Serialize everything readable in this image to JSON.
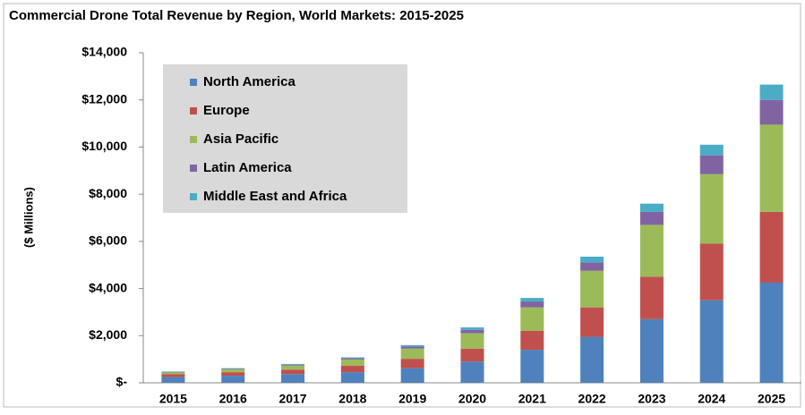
{
  "chart_data": {
    "type": "stacked_bar",
    "title": "Commercial Drone Total Revenue by Region, World Markets: 2015-2025",
    "y_label": "($ Millions)",
    "categories": [
      "2015",
      "2016",
      "2017",
      "2018",
      "2019",
      "2020",
      "2021",
      "2022",
      "2023",
      "2024",
      "2025"
    ],
    "series": [
      {
        "name": "North America",
        "color": "#4f81bd",
        "values": [
          250,
          300,
          370,
          450,
          620,
          900,
          1400,
          1950,
          2700,
          3500,
          4250
        ]
      },
      {
        "name": "Europe",
        "color": "#c0504d",
        "values": [
          110,
          150,
          190,
          270,
          400,
          550,
          800,
          1250,
          1800,
          2400,
          3000
        ]
      },
      {
        "name": "Asia Pacific",
        "color": "#9bbb59",
        "values": [
          80,
          120,
          170,
          270,
          430,
          650,
          1000,
          1550,
          2200,
          2950,
          3700
        ]
      },
      {
        "name": "Latin America",
        "color": "#8064a2",
        "values": [
          20,
          30,
          40,
          50,
          90,
          150,
          250,
          350,
          550,
          800,
          1050
        ]
      },
      {
        "name": "Middle East and Africa",
        "color": "#4bacc6",
        "values": [
          20,
          20,
          30,
          40,
          60,
          100,
          150,
          250,
          350,
          450,
          650
        ]
      }
    ],
    "ylim": [
      0,
      14000
    ],
    "yticks": [
      {
        "value": 0,
        "label": "$-"
      },
      {
        "value": 2000,
        "label": "$2,000"
      },
      {
        "value": 4000,
        "label": "$4,000"
      },
      {
        "value": 6000,
        "label": "$6,000"
      },
      {
        "value": 8000,
        "label": "$8,000"
      },
      {
        "value": 10000,
        "label": "$10,000"
      },
      {
        "value": 12000,
        "label": "$12,000"
      },
      {
        "value": 14000,
        "label": "$14,000"
      }
    ],
    "legend": "upper left"
  }
}
